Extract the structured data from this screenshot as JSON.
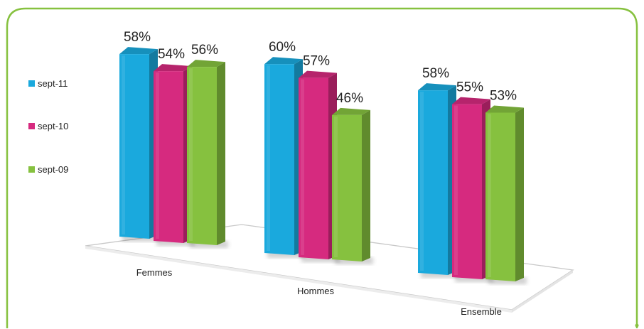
{
  "chart_data": {
    "type": "bar",
    "categories": [
      "Femmes",
      "Hommes",
      "Ensemble"
    ],
    "series": [
      {
        "name": "sept-11",
        "color": "#1aa9dd",
        "values": [
          58,
          60,
          58
        ]
      },
      {
        "name": "sept-10",
        "color": "#d62a7f",
        "values": [
          54,
          57,
          55
        ]
      },
      {
        "name": "sept-09",
        "color": "#86c13f",
        "values": [
          56,
          46,
          53
        ]
      }
    ],
    "value_suffix": "%",
    "title": "",
    "xlabel": "",
    "ylabel": "",
    "ylim": [
      0,
      60
    ],
    "grid": false,
    "legend": "left",
    "three_d": true,
    "frame_color": "#86c13f"
  }
}
